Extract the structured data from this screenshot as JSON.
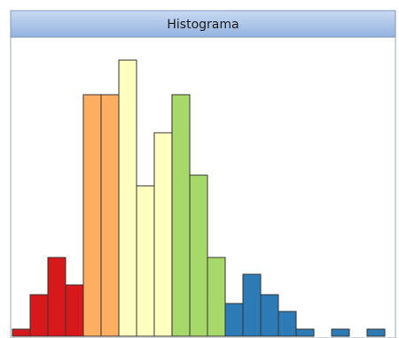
{
  "chart_data": {
    "type": "histogram",
    "title": "Histograma",
    "bins": [
      0,
      1,
      2,
      3,
      4,
      5,
      6,
      7,
      8,
      9,
      10,
      11,
      12,
      13,
      14,
      15,
      16,
      17,
      18,
      19,
      20,
      21
    ],
    "values": [
      8,
      47,
      89,
      58,
      273,
      273,
      312,
      170,
      230,
      273,
      182,
      89,
      37,
      70,
      47,
      28,
      8,
      0,
      8,
      0,
      8
    ],
    "colors": [
      "#d7191c",
      "#d7191c",
      "#d7191c",
      "#d7191c",
      "#fdae61",
      "#fdae61",
      "#ffffbf",
      "#ffffbf",
      "#ffffbf",
      "#a6d96a",
      "#a6d96a",
      "#a6d96a",
      "#2c7bb6",
      "#2c7bb6",
      "#2c7bb6",
      "#2c7bb6",
      "#2c7bb6",
      "#2c7bb6",
      "#2c7bb6",
      "#2c7bb6",
      "#2c7bb6"
    ],
    "xlim": [
      0,
      21
    ],
    "ylim": [
      0,
      320
    ]
  }
}
